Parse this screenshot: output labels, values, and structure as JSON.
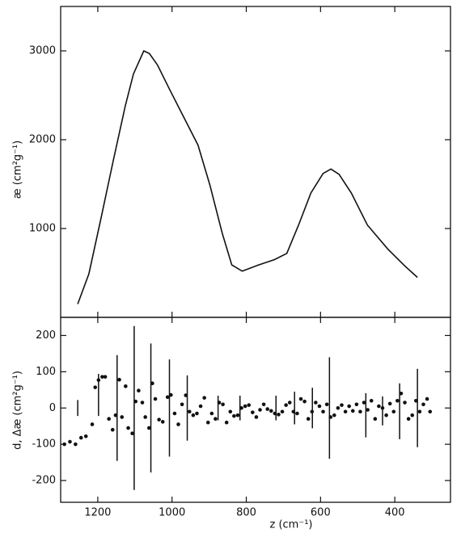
{
  "chart_data": [
    {
      "type": "line",
      "ylabel": "æ (cm²g⁻¹)",
      "color": "#111111",
      "x": [
        1254,
        1224,
        1191,
        1159,
        1126,
        1104,
        1076,
        1061,
        1039,
        1007,
        974,
        930,
        898,
        865,
        839,
        811,
        767,
        724,
        691,
        659,
        626,
        593,
        572,
        550,
        517,
        474,
        419,
        376,
        339
      ],
      "values": [
        150,
        490,
        1120,
        1750,
        2380,
        2740,
        3000,
        2970,
        2840,
        2570,
        2300,
        1940,
        1490,
        950,
        590,
        520,
        590,
        650,
        720,
        1040,
        1400,
        1620,
        1670,
        1610,
        1400,
        1040,
        770,
        590,
        450
      ],
      "xlim": [
        1300,
        250
      ],
      "ylim": [
        0,
        3500
      ],
      "yticks": [
        1000,
        2000,
        3000
      ]
    },
    {
      "type": "scatter",
      "ylabel": "d, Δæ (cm²g⁻¹)",
      "xlabel": "z (cm⁻¹)",
      "color": "#111111",
      "x": [
        1290,
        1275,
        1260,
        1245,
        1232,
        1215,
        1207,
        1198,
        1188,
        1180,
        1170,
        1160,
        1152,
        1142,
        1135,
        1125,
        1118,
        1107,
        1098,
        1090,
        1080,
        1072,
        1062,
        1053,
        1045,
        1035,
        1025,
        1012,
        1003,
        993,
        983,
        973,
        963,
        953,
        943,
        933,
        923,
        913,
        903,
        893,
        883,
        873,
        863,
        853,
        843,
        833,
        823,
        813,
        803,
        793,
        783,
        773,
        763,
        753,
        743,
        733,
        723,
        713,
        703,
        693,
        683,
        673,
        663,
        653,
        643,
        633,
        623,
        613,
        603,
        593,
        583,
        573,
        563,
        553,
        543,
        533,
        523,
        513,
        503,
        493,
        483,
        473,
        463,
        453,
        443,
        433,
        423,
        413,
        403,
        393,
        383,
        373,
        363,
        353,
        343,
        333,
        323,
        313,
        305
      ],
      "values": [
        -100,
        -93,
        -100,
        -82,
        -78,
        -45,
        57,
        77,
        86,
        86,
        -30,
        -60,
        -20,
        78,
        -25,
        60,
        -55,
        -70,
        18,
        48,
        15,
        -25,
        -55,
        68,
        25,
        -32,
        -38,
        30,
        36,
        -15,
        -45,
        10,
        35,
        -10,
        -20,
        -15,
        5,
        28,
        -40,
        -15,
        -30,
        15,
        10,
        -40,
        -10,
        -22,
        -20,
        0,
        5,
        8,
        -12,
        -25,
        -5,
        10,
        -3,
        -8,
        -15,
        -18,
        -10,
        8,
        15,
        -10,
        -15,
        25,
        18,
        -30,
        -10,
        15,
        5,
        -10,
        10,
        -25,
        -20,
        0,
        8,
        -10,
        5,
        -8,
        10,
        -10,
        15,
        -5,
        20,
        -30,
        5,
        0,
        -20,
        12,
        -10,
        20,
        40,
        15,
        -30,
        -20,
        20,
        -10,
        10,
        25,
        -10
      ],
      "errorbars": {
        "x": [
          1254,
          1198,
          1148,
          1102,
          1057,
          1007,
          959,
          876,
          817,
          720,
          670,
          622,
          576,
          478,
          433,
          387,
          339
        ],
        "values": [
          0,
          36,
          0,
          0,
          0,
          0,
          0,
          0,
          0,
          0,
          0,
          0,
          0,
          -20,
          -8,
          -9,
          0
        ],
        "errors": [
          22,
          58,
          146,
          226,
          178,
          134,
          90,
          34,
          34,
          34,
          45,
          56,
          140,
          61,
          40,
          77,
          108
        ]
      },
      "xlim": [
        1300,
        250
      ],
      "ylim": [
        -260,
        250
      ],
      "yticks": [
        -200,
        -100,
        0,
        100,
        200
      ],
      "xticks": [
        1200,
        1000,
        800,
        600,
        400
      ]
    }
  ]
}
